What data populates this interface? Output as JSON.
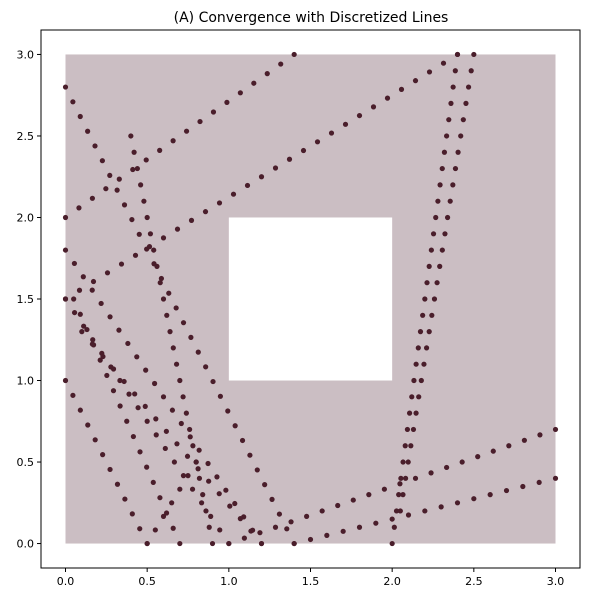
{
  "chart_data": {
    "type": "scatter",
    "title": "(A) Convergence with Discretized Lines",
    "xlabel": "",
    "ylabel": "",
    "xlim": [
      -0.15,
      3.15
    ],
    "ylim": [
      -0.15,
      3.15
    ],
    "x_ticks": [
      "0.0",
      "0.5",
      "1.0",
      "1.5",
      "2.0",
      "2.5",
      "3.0"
    ],
    "y_ticks": [
      "0.0",
      "0.5",
      "1.0",
      "1.5",
      "2.0",
      "2.5",
      "3.0"
    ],
    "grid": false,
    "legend": "none",
    "colors": {
      "region_fill": "#cbbec3",
      "hole_fill": "#ffffff",
      "point": "#4a1e2b"
    },
    "region": {
      "x": [
        0,
        3
      ],
      "y": [
        0,
        3
      ]
    },
    "hole": {
      "x": [
        1,
        2
      ],
      "y": [
        1,
        2
      ]
    },
    "lines": [
      {
        "from": [
          0,
          2.8
        ],
        "to": [
          1.4,
          0
        ]
      },
      {
        "from": [
          0,
          2.0
        ],
        "to": [
          1.4,
          3.0
        ]
      },
      {
        "from": [
          0,
          1.8
        ],
        "to": [
          1.2,
          0
        ]
      },
      {
        "from": [
          0,
          1.5
        ],
        "to": [
          1.0,
          0
        ]
      },
      {
        "from": [
          0,
          1.5
        ],
        "to": [
          2.4,
          3.0
        ]
      },
      {
        "from": [
          0,
          1.0
        ],
        "to": [
          0.5,
          0
        ]
      },
      {
        "from": [
          0.5,
          0
        ],
        "to": [
          0.8,
          0.5
        ]
      },
      {
        "from": [
          0.7,
          0
        ],
        "to": [
          0.05,
          1.5
        ]
      },
      {
        "from": [
          0.9,
          0
        ],
        "to": [
          0.4,
          2.5
        ]
      },
      {
        "from": [
          1.0,
          0
        ],
        "to": [
          3.0,
          0.7
        ]
      },
      {
        "from": [
          1.2,
          0
        ],
        "to": [
          0.1,
          1.3
        ]
      },
      {
        "from": [
          1.4,
          0
        ],
        "to": [
          3.0,
          0.4
        ]
      },
      {
        "from": [
          2.0,
          0
        ],
        "to": [
          2.4,
          3.0
        ]
      },
      {
        "from": [
          2.05,
          0.2
        ],
        "to": [
          2.5,
          3.0
        ]
      }
    ]
  }
}
